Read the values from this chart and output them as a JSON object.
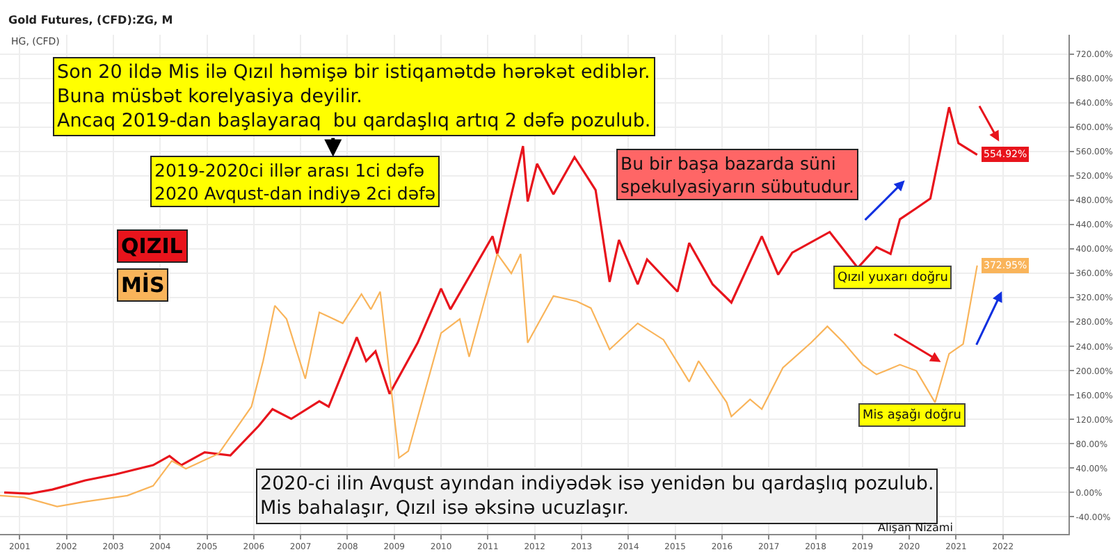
{
  "chart_data": {
    "type": "line",
    "title": "Gold Futures, (CFD):ZG, M",
    "subtitle": "HG, (CFD)",
    "annotations": [
      "Son 20 ildə Mis ilə Qızıl həmişə bir istiqamətdə hərəkət ediblər.\nBuna müsbət korelyasiya deyilir.\nAncaq 2019-dan başlayaraq  bu qardaşlıq artıq 2 dəfə pozulub.",
      "2019-2020ci illər arası 1ci dəfə\n2020 Avqust-dan indiyə 2ci dəfə",
      "Bu bir başa bazarda süni\nspekulyasiyarın sübutudur.",
      "Qızıl yuxarı doğru",
      "Mis aşağı doğru",
      "2020-ci ilin Avqust ayından indiyədək isə yenidən bu qardaşlıq pozulub.\nMis bahalaşır, Qızıl isə əksinə ucuzlaşır.",
      "Alişan Nizami"
    ],
    "series": [
      {
        "name": "QIZIL",
        "color": "#e8141c",
        "x": [
          2000.67,
          2001.2,
          2001.7,
          2002.4,
          2003.05,
          2003.85,
          2004.2,
          2004.45,
          2004.95,
          2005.5,
          2006.1,
          2006.4,
          2006.8,
          2007.4,
          2007.6,
          2008.2,
          2008.4,
          2008.6,
          2008.9,
          2009.5,
          2010.0,
          2010.2,
          2011.1,
          2011.2,
          2011.75,
          2011.85,
          2012.05,
          2012.4,
          2012.85,
          2013.3,
          2013.6,
          2013.8,
          2014.2,
          2014.4,
          2015.05,
          2015.3,
          2015.8,
          2016.2,
          2016.85,
          2017.2,
          2017.5,
          2018.3,
          2018.9,
          2019.3,
          2019.6,
          2019.8,
          2020.15,
          2020.45,
          2020.85,
          2021.05,
          2021.45
        ],
        "values": [
          0,
          -2,
          5,
          20,
          30,
          45,
          60,
          45,
          66,
          61,
          109,
          137,
          121,
          150,
          141,
          255,
          216,
          232,
          162,
          246,
          335,
          301,
          421,
          392,
          569,
          478,
          540,
          490,
          551,
          497,
          346,
          415,
          342,
          383,
          330,
          410,
          342,
          312,
          421,
          358,
          394,
          428,
          369,
          403,
          392,
          449,
          467,
          483,
          633,
          574,
          554.92
        ],
        "value_labels": [
          null,
          null,
          null,
          null,
          null,
          null,
          null,
          null,
          null,
          null,
          null,
          null,
          null,
          null,
          null,
          null,
          null,
          null,
          null,
          null,
          null,
          null,
          null,
          null,
          null,
          null,
          null,
          null,
          null,
          null,
          null,
          null,
          null,
          null,
          null,
          null,
          null,
          null,
          null,
          null,
          null,
          null,
          null,
          null,
          null,
          null,
          null,
          null,
          null,
          null,
          "554.92%"
        ]
      },
      {
        "name": "MİS",
        "color": "#f9b45a",
        "x": [
          2000.58,
          2001.1,
          2001.8,
          2002.4,
          2003.3,
          2003.85,
          2004.25,
          2004.55,
          2005.25,
          2005.95,
          2006.2,
          2006.45,
          2006.7,
          2007.1,
          2007.4,
          2007.6,
          2007.9,
          2008.3,
          2008.5,
          2008.7,
          2009.1,
          2009.3,
          2010.0,
          2010.4,
          2010.6,
          2011.2,
          2011.5,
          2011.7,
          2011.85,
          2012.4,
          2012.9,
          2013.2,
          2013.6,
          2014.2,
          2014.75,
          2015.3,
          2015.5,
          2016.1,
          2016.2,
          2016.6,
          2016.85,
          2017.3,
          2017.9,
          2018.25,
          2018.6,
          2019.0,
          2019.3,
          2019.8,
          2020.15,
          2020.55,
          2020.85,
          2021.15,
          2021.45
        ],
        "values": [
          -5,
          -8,
          -23,
          -15,
          -5,
          11,
          52,
          39,
          64,
          141,
          216,
          307,
          285,
          187,
          296,
          289,
          278,
          326,
          301,
          330,
          57,
          68,
          262,
          285,
          223,
          392,
          360,
          392,
          246,
          323,
          314,
          303,
          235,
          278,
          251,
          182,
          216,
          148,
          125,
          153,
          137,
          205,
          246,
          273,
          246,
          210,
          194,
          210,
          200,
          148,
          228,
          244,
          372.95
        ],
        "value_labels": [
          null,
          null,
          null,
          null,
          null,
          null,
          null,
          null,
          null,
          null,
          null,
          null,
          null,
          null,
          null,
          null,
          null,
          null,
          null,
          null,
          null,
          null,
          null,
          null,
          null,
          null,
          null,
          null,
          null,
          null,
          null,
          null,
          null,
          null,
          null,
          null,
          null,
          null,
          null,
          null,
          null,
          null,
          null,
          null,
          null,
          null,
          null,
          null,
          null,
          null,
          null,
          null,
          "372.95%"
        ]
      }
    ],
    "xlim": [
      2000.58,
      2023.4
    ],
    "xticks": [
      2001,
      2002,
      2003,
      2004,
      2005,
      2006,
      2007,
      2008,
      2009,
      2010,
      2011,
      2012,
      2013,
      2014,
      2015,
      2016,
      2017,
      2018,
      2019,
      2020,
      2021,
      2022
    ],
    "ylim": [
      -68,
      752
    ],
    "yticks": [
      {
        "value": -40,
        "label": "-40.00%"
      },
      {
        "value": 0,
        "label": "0.00%"
      },
      {
        "value": 40,
        "label": "40.00%"
      },
      {
        "value": 80,
        "label": "80.00%"
      },
      {
        "value": 120,
        "label": "120.00%"
      },
      {
        "value": 160,
        "label": "160.00%"
      },
      {
        "value": 200,
        "label": "200.00%"
      },
      {
        "value": 240,
        "label": "240.00%"
      },
      {
        "value": 280,
        "label": "280.00%"
      },
      {
        "value": 320,
        "label": "320.00%"
      },
      {
        "value": 360,
        "label": "360.00%"
      },
      {
        "value": 400,
        "label": "400.00%"
      },
      {
        "value": 440,
        "label": "440.00%"
      },
      {
        "value": 480,
        "label": "480.00%"
      },
      {
        "value": 520,
        "label": "520.00%"
      },
      {
        "value": 560,
        "label": "560.00%"
      },
      {
        "value": 600,
        "label": "600.00%"
      },
      {
        "value": 640,
        "label": "640.00%"
      },
      {
        "value": 680,
        "label": "680.00%"
      },
      {
        "value": 720,
        "label": "720.00%"
      }
    ],
    "grid": true,
    "legend": false,
    "marker": "none",
    "line_style": "solid"
  }
}
